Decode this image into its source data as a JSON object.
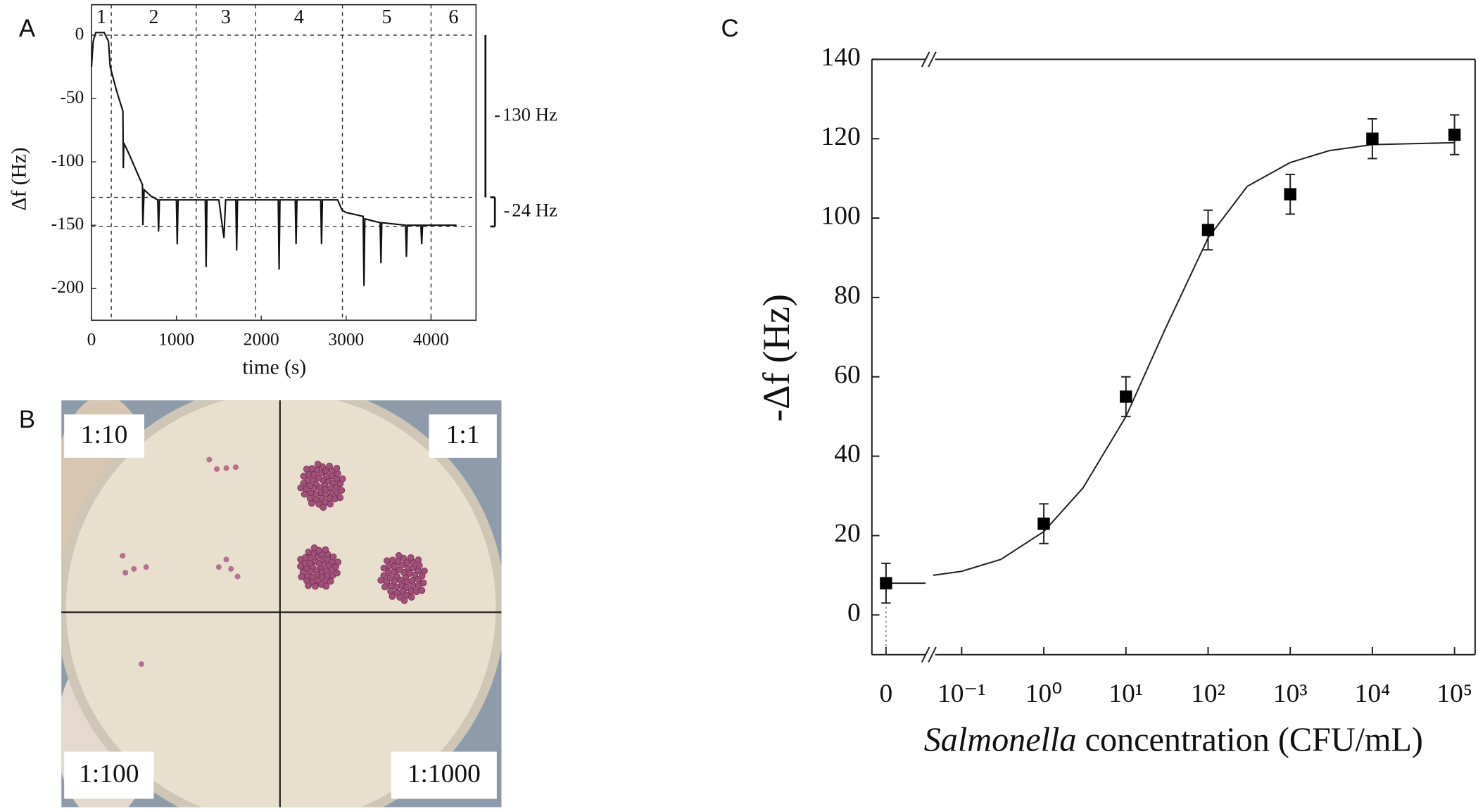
{
  "chart_data": [
    {
      "type": "line",
      "panel_label": "A",
      "xlabel": "time (s)",
      "ylabel": "Δf (Hz)",
      "xlim": [
        0,
        4530
      ],
      "ylim": [
        -225,
        24
      ],
      "xticks": [
        0,
        1000,
        2000,
        3000,
        4000
      ],
      "yticks": [
        0,
        -50,
        -100,
        -150,
        -200
      ],
      "color": "#111111",
      "x": [
        0,
        20,
        50,
        150,
        200,
        220,
        300,
        370,
        375,
        380,
        450,
        560,
        600,
        605,
        620,
        700,
        780,
        790,
        800,
        1000,
        1010,
        1020,
        1200,
        1340,
        1350,
        1360,
        1500,
        1560,
        1580,
        1700,
        1710,
        1720,
        1900,
        2200,
        2210,
        2220,
        2400,
        2410,
        2420,
        2700,
        2710,
        2720,
        2900,
        2950,
        3000,
        3200,
        3210,
        3220,
        3400,
        3410,
        3420,
        3700,
        3710,
        3720,
        3880,
        3890,
        3900,
        4200,
        4300
      ],
      "values": [
        -25,
        -5,
        2,
        2,
        -5,
        -25,
        -45,
        -60,
        -105,
        -85,
        -95,
        -112,
        -118,
        -150,
        -122,
        -127,
        -130,
        -155,
        -130,
        -130,
        -165,
        -130,
        -130,
        -130,
        -183,
        -130,
        -130,
        -160,
        -130,
        -130,
        -170,
        -130,
        -130,
        -130,
        -185,
        -130,
        -130,
        -165,
        -130,
        -130,
        -165,
        -130,
        -130,
        -138,
        -140,
        -143,
        -198,
        -145,
        -148,
        -180,
        -148,
        -150,
        -175,
        -150,
        -150,
        -165,
        -150,
        -150,
        -150
      ],
      "vlines": [
        233,
        1233,
        1933,
        2956,
        4000
      ],
      "hlines": [
        0,
        -128,
        -151
      ],
      "segments": [
        "1",
        "2",
        "3",
        "4",
        "5",
        "6"
      ],
      "annotations": [
        "130 Hz",
        "24 Hz"
      ]
    },
    {
      "type": "scatter",
      "panel_label": "C",
      "xlabel_italic": "Salmonella",
      "xlabel": "concentration (CFU/mL)",
      "ylabel": "-Δf (Hz)",
      "xscale": "log",
      "axis_break": true,
      "xlim": [
        0.045,
        178000
      ],
      "ylim": [
        -10,
        140
      ],
      "xticks": [
        0,
        {
          "value": 0.1,
          "label": "10⁻¹"
        },
        {
          "value": 1,
          "label": "10⁰"
        },
        {
          "value": 10,
          "label": "10¹"
        },
        {
          "value": 100,
          "label": "10²"
        },
        {
          "value": 1000,
          "label": "10³"
        },
        {
          "value": 10000,
          "label": "10⁴"
        },
        {
          "value": 100000,
          "label": "10⁵"
        }
      ],
      "yticks": [
        0,
        20,
        40,
        60,
        80,
        100,
        120,
        140
      ],
      "color": "#000000",
      "x": [
        0,
        1,
        10,
        100,
        1000,
        10000,
        100000
      ],
      "values": [
        8,
        23,
        55,
        97,
        106,
        120,
        121
      ],
      "errors": [
        5,
        5,
        5,
        5,
        5,
        5,
        5
      ],
      "fit": {
        "x": [
          0.045,
          0.1,
          0.3,
          1,
          3,
          10,
          30,
          100,
          300,
          1000,
          3000,
          10000,
          100000
        ],
        "values": [
          10,
          11,
          14,
          21,
          32,
          50,
          72,
          95,
          108,
          114,
          117,
          118.5,
          119
        ]
      }
    }
  ],
  "photo": {
    "panel_label": "B",
    "labels": [
      "1:10",
      "1:1",
      "1:100",
      "1:1000"
    ]
  }
}
